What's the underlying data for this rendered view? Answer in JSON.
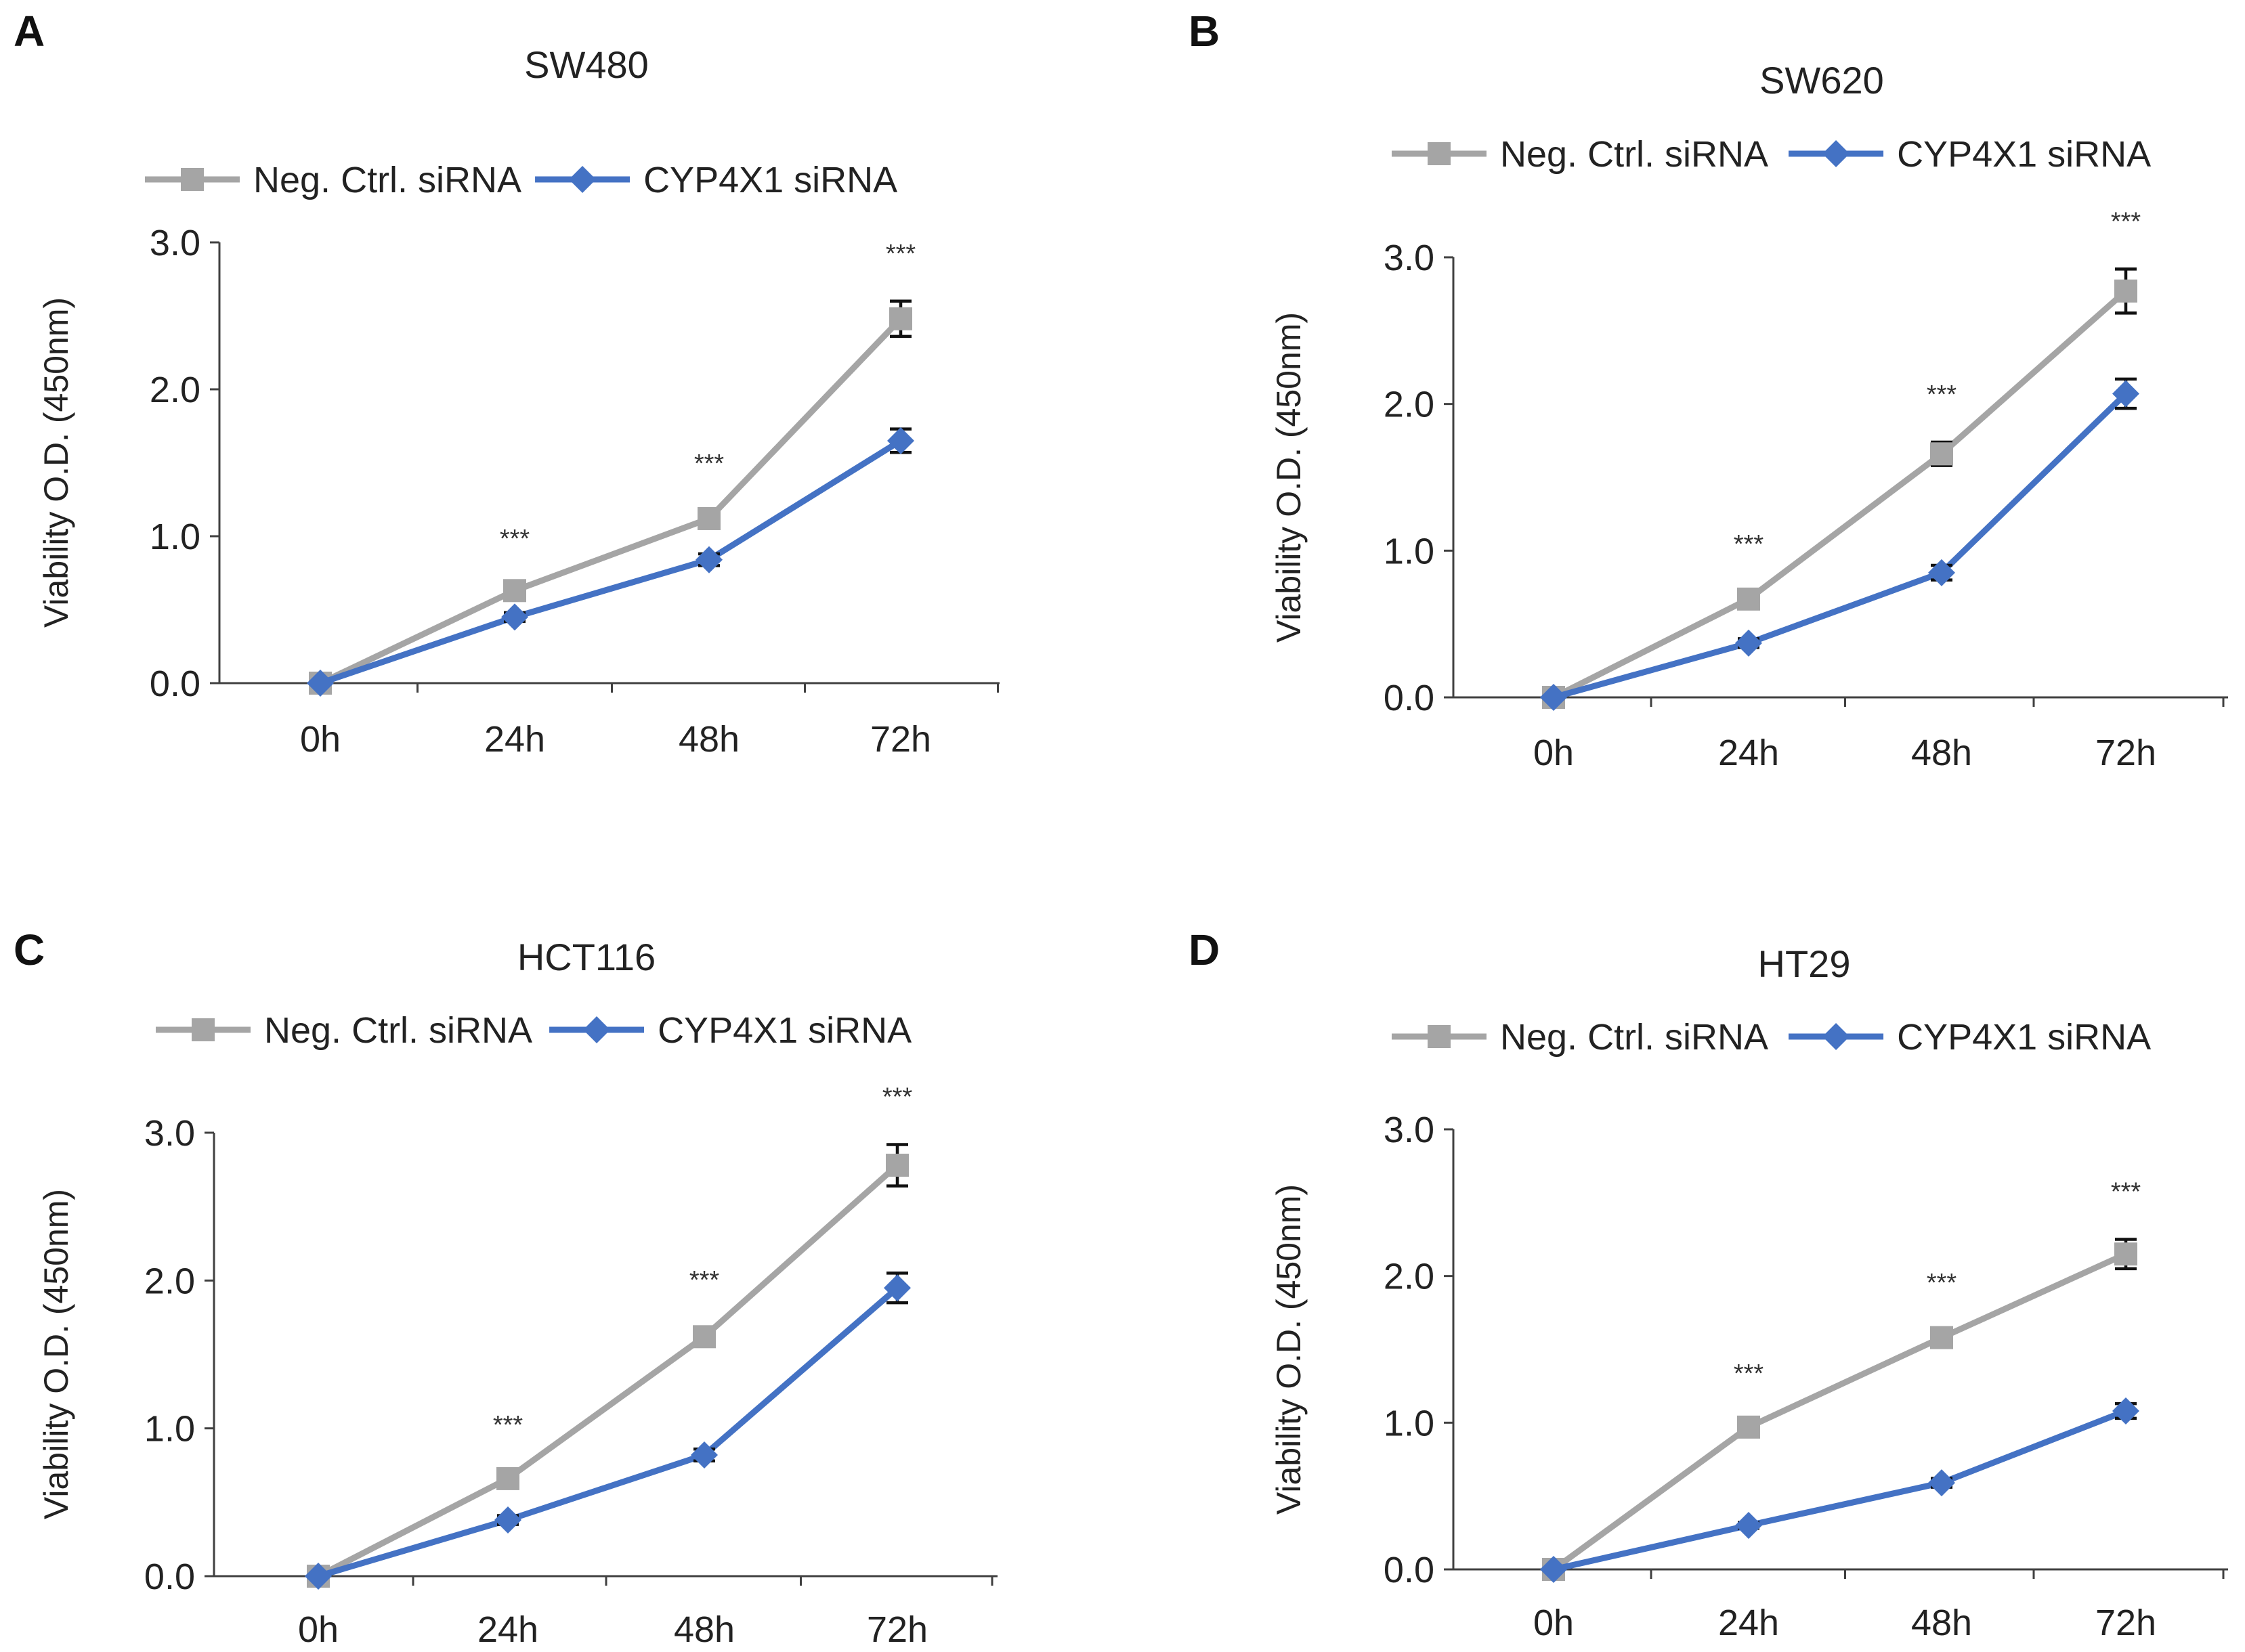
{
  "colors": {
    "neg_ctrl": "#A5A5A5",
    "cyp4x1": "#4472C4",
    "axis": "#404040",
    "text": "#222222"
  },
  "chart_data": [
    {
      "type": "line",
      "panel": "A",
      "title": "SW480",
      "categories": [
        "0h",
        "24h",
        "48h",
        "72h"
      ],
      "ylabel": "Viability O.D. (450nm)",
      "xlabel": "",
      "ylim": [
        0,
        3
      ],
      "yticks": [
        "0.0",
        "1.0",
        "2.0",
        "3.0"
      ],
      "series": [
        {
          "name": "Neg. Ctrl. siRNA",
          "marker": "square",
          "values": [
            0.0,
            0.63,
            1.12,
            2.48
          ],
          "errors": [
            0.0,
            0.03,
            0.05,
            0.12
          ]
        },
        {
          "name": "CYP4X1 siRNA",
          "marker": "diamond",
          "values": [
            0.0,
            0.45,
            0.84,
            1.65
          ],
          "errors": [
            0.0,
            0.03,
            0.04,
            0.08
          ]
        }
      ],
      "significance": [
        "",
        "***",
        "***",
        "***"
      ]
    },
    {
      "type": "line",
      "panel": "B",
      "title": "SW620",
      "categories": [
        "0h",
        "24h",
        "48h",
        "72h"
      ],
      "ylabel": "Viability O.D. (450nm)",
      "xlabel": "",
      "ylim": [
        0,
        3
      ],
      "yticks": [
        "0.0",
        "1.0",
        "2.0",
        "3.0"
      ],
      "series": [
        {
          "name": "Neg. Ctrl. siRNA",
          "marker": "square",
          "values": [
            0.0,
            0.67,
            1.66,
            2.77
          ],
          "errors": [
            0.0,
            0.05,
            0.08,
            0.15
          ]
        },
        {
          "name": "CYP4X1 siRNA",
          "marker": "diamond",
          "values": [
            0.0,
            0.37,
            0.85,
            2.07
          ],
          "errors": [
            0.0,
            0.03,
            0.05,
            0.1
          ]
        }
      ],
      "significance": [
        "",
        "***",
        "***",
        "***"
      ]
    },
    {
      "type": "line",
      "panel": "C",
      "title": "HCT116",
      "categories": [
        "0h",
        "24h",
        "48h",
        "72h"
      ],
      "ylabel": "Viability O.D. (450nm)",
      "xlabel": "",
      "ylim": [
        0,
        3
      ],
      "yticks": [
        "0.0",
        "1.0",
        "2.0",
        "3.0"
      ],
      "series": [
        {
          "name": "Neg. Ctrl. siRNA",
          "marker": "square",
          "values": [
            0.0,
            0.66,
            1.62,
            2.78
          ],
          "errors": [
            0.0,
            0.04,
            0.06,
            0.14
          ]
        },
        {
          "name": "CYP4X1 siRNA",
          "marker": "diamond",
          "values": [
            0.0,
            0.38,
            0.82,
            1.95
          ],
          "errors": [
            0.0,
            0.03,
            0.04,
            0.1
          ]
        }
      ],
      "significance": [
        "",
        "***",
        "***",
        "***"
      ]
    },
    {
      "type": "line",
      "panel": "D",
      "title": "HT29",
      "categories": [
        "0h",
        "24h",
        "48h",
        "72h"
      ],
      "ylabel": "Viability O.D. (450nm)",
      "xlabel": "",
      "ylim": [
        0,
        3
      ],
      "yticks": [
        "0.0",
        "1.0",
        "2.0",
        "3.0"
      ],
      "series": [
        {
          "name": "Neg. Ctrl. siRNA",
          "marker": "square",
          "values": [
            0.0,
            0.97,
            1.58,
            2.15
          ],
          "errors": [
            0.0,
            0.04,
            0.05,
            0.1
          ]
        },
        {
          "name": "CYP4X1 siRNA",
          "marker": "diamond",
          "values": [
            0.0,
            0.3,
            0.59,
            1.08
          ],
          "errors": [
            0.0,
            0.02,
            0.03,
            0.05
          ]
        }
      ],
      "significance": [
        "",
        "***",
        "***",
        "***"
      ]
    }
  ]
}
